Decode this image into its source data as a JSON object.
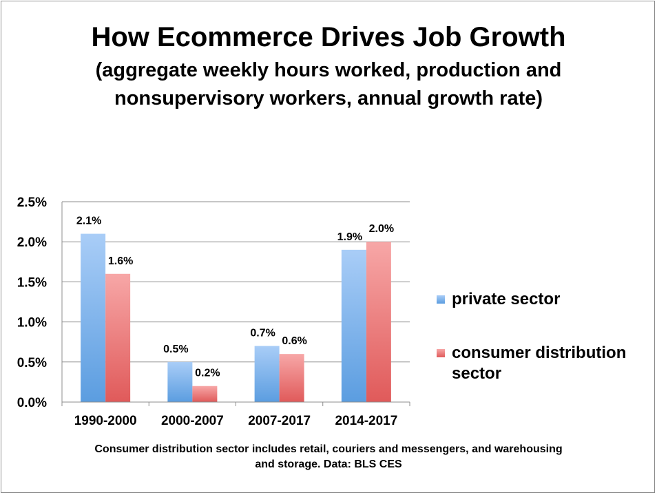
{
  "chart_data": {
    "type": "bar",
    "title": "How Ecommerce Drives Job Growth",
    "subtitle": "(aggregate weekly hours worked, production and nonsupervisory workers, annual growth rate)",
    "categories": [
      "1990-2000",
      "2000-2007",
      "2007-2017",
      "2014-2017"
    ],
    "series": [
      {
        "name": "private sector",
        "values": [
          2.1,
          0.5,
          0.7,
          1.9
        ],
        "labels": [
          "2.1%",
          "0.5%",
          "0.7%",
          "1.9%"
        ],
        "color_top": "#a9cdf7",
        "color_bottom": "#5b9de0"
      },
      {
        "name": "consumer distribution sector",
        "values": [
          1.6,
          0.2,
          0.6,
          2.0
        ],
        "labels": [
          "1.6%",
          "0.2%",
          "0.6%",
          "2.0%"
        ],
        "color_top": "#f7a7a7",
        "color_bottom": "#e05a5a"
      }
    ],
    "yticks": [
      "0.0%",
      "0.5%",
      "1.0%",
      "1.5%",
      "2.0%",
      "2.5%"
    ],
    "ylim": [
      0,
      2.5
    ],
    "grid": true,
    "legend_position": "right",
    "xlabel": "",
    "ylabel": "",
    "footnote": "Consumer distribution sector includes retail, couriers and messengers, and warehousing and storage. Data: BLS CES"
  }
}
